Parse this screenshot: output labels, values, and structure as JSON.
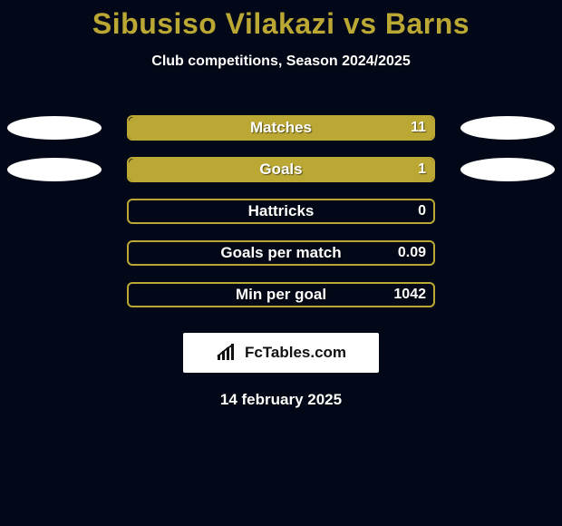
{
  "page": {
    "background_color": "#020817",
    "title": "Sibusiso Vilakazi vs Barns",
    "title_color": "#bba834",
    "subtitle": "Club competitions, Season 2024/2025",
    "subtitle_color": "#ffffff",
    "date": "14 february 2025",
    "date_color": "#ffffff"
  },
  "chart": {
    "type": "bar",
    "bar_track_width": 340,
    "bar_track_height": 28,
    "bar_border_color": "#bba834",
    "bar_border_width": 2,
    "bar_fill_color": "#bba834",
    "bar_empty_color": "transparent",
    "bar_radius": 6,
    "label_color": "#ffffff",
    "label_fontsize": 17,
    "value_color": "#ffffff",
    "value_fontsize": 16,
    "left_pill_color": "#ffffff",
    "right_pill_color": "#ffffff",
    "rows": [
      {
        "label": "Matches",
        "value": "11",
        "fill_pct": 100,
        "left_pill": true,
        "right_pill": true,
        "left_pill_color": "#ffffff",
        "right_pill_color": "#ffffff"
      },
      {
        "label": "Goals",
        "value": "1",
        "fill_pct": 100,
        "left_pill": true,
        "right_pill": true,
        "left_pill_color": "#ffffff",
        "right_pill_color": "#ffffff"
      },
      {
        "label": "Hattricks",
        "value": "0",
        "fill_pct": 0,
        "left_pill": false,
        "right_pill": false
      },
      {
        "label": "Goals per match",
        "value": "0.09",
        "fill_pct": 0,
        "left_pill": false,
        "right_pill": false
      },
      {
        "label": "Min per goal",
        "value": "1042",
        "fill_pct": 0,
        "left_pill": false,
        "right_pill": false
      }
    ]
  },
  "badge": {
    "background_color": "#ffffff",
    "icon_color": "#111111",
    "text": "FcTables.com",
    "text_color": "#111111"
  }
}
